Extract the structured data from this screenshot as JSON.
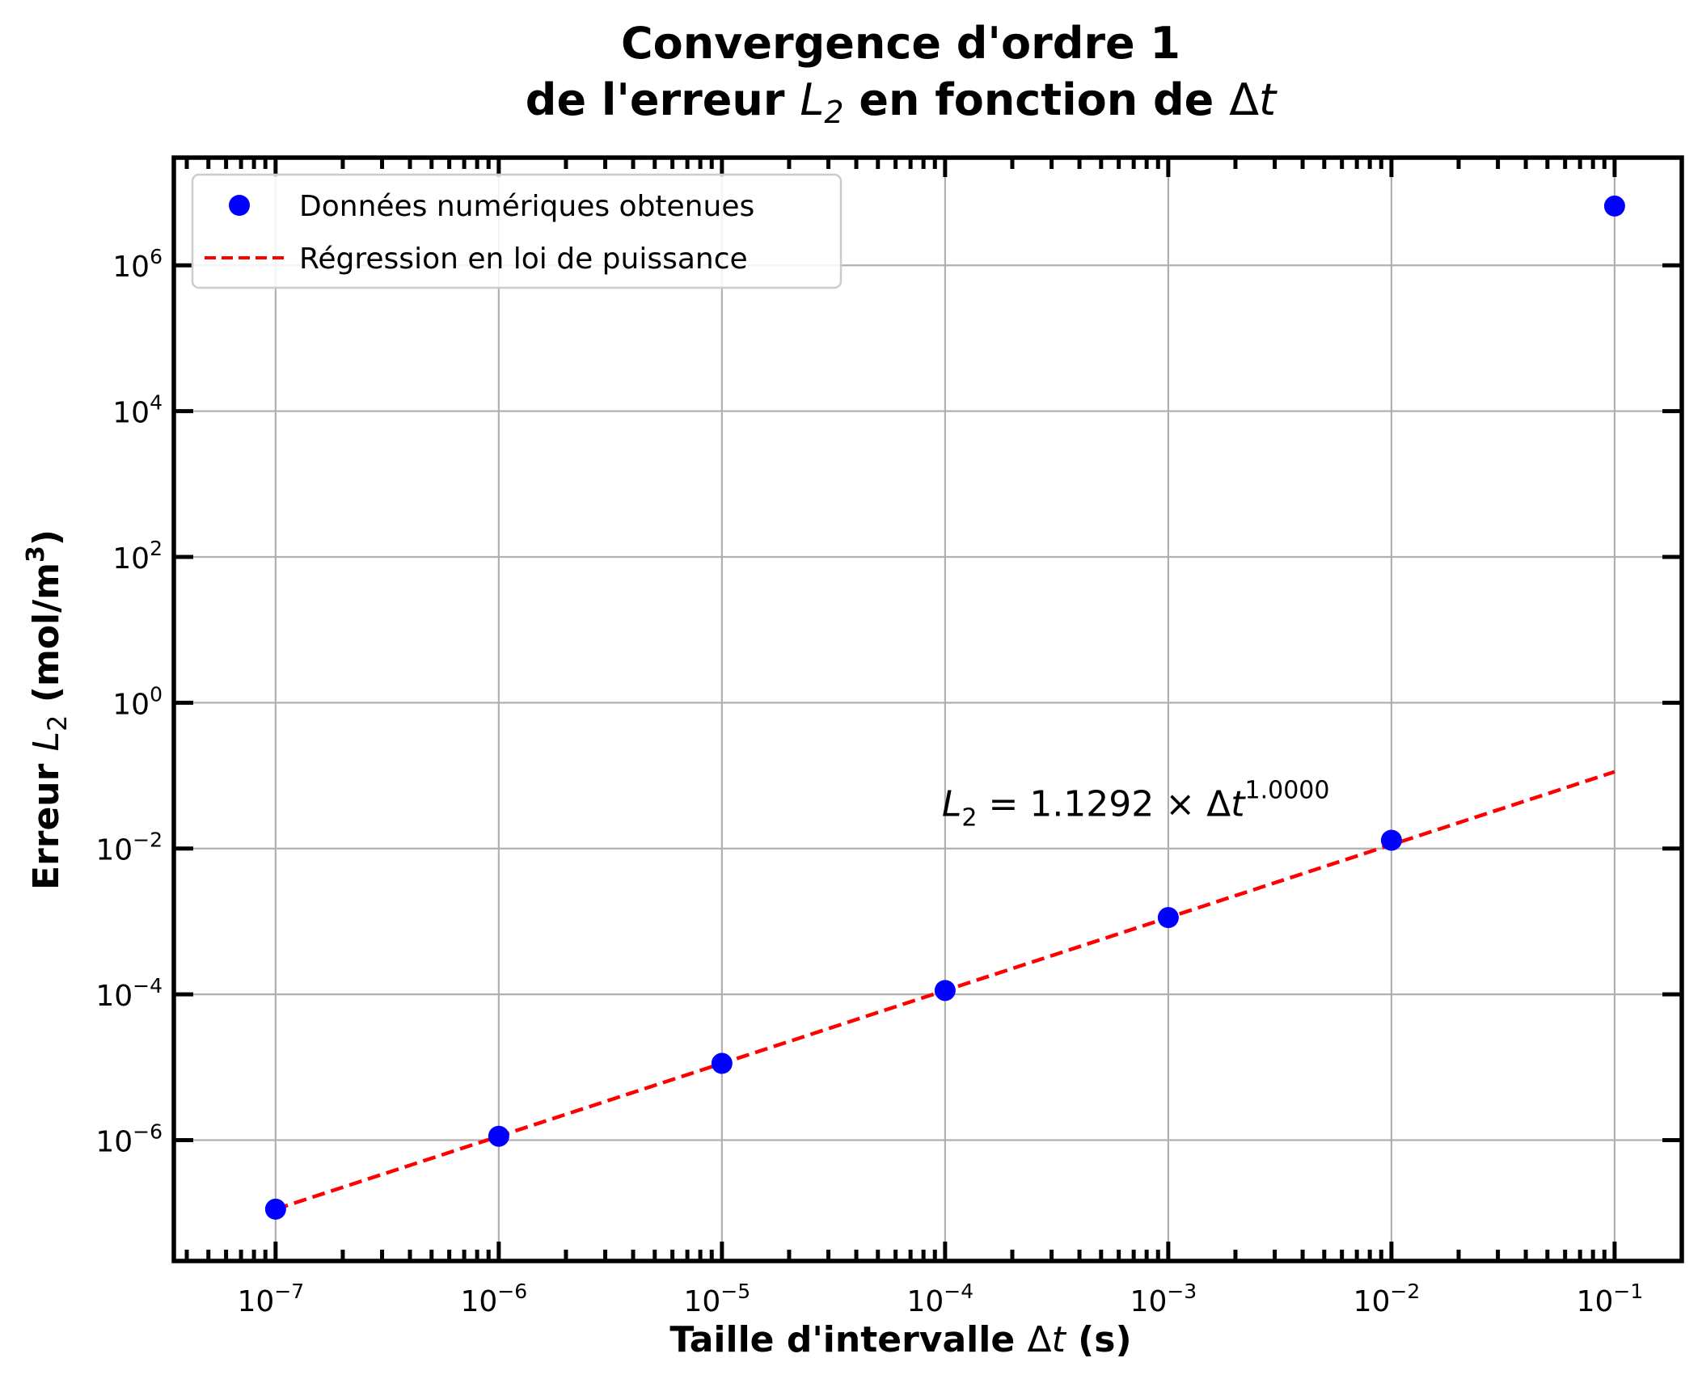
{
  "chart_data": {
    "type": "scatter",
    "title": {
      "line1": "Convergence d'ordre 1",
      "line2_prefix": "de l'erreur ",
      "line2_symbol": "L",
      "line2_sub": "2",
      "line2_middle": " en fonction de ",
      "line2_delta": "Δ",
      "line2_var": "t"
    },
    "xlabel": {
      "prefix": "Taille d'intervalle ",
      "delta": "Δ",
      "var": "t",
      "suffix": " (s)"
    },
    "ylabel": {
      "prefix": "Erreur ",
      "symbol": "L",
      "sub": "2",
      "unit_open": " (mol/m",
      "unit_exp": "3",
      "unit_close": ")"
    },
    "xscale": "log",
    "yscale": "log",
    "xlim": [
      3.5e-08,
      0.2
    ],
    "ylim": [
      2.2e-08,
      30000000.0
    ],
    "xticks": [
      {
        "base": "10",
        "exp": "−7",
        "value": 1e-07
      },
      {
        "base": "10",
        "exp": "−6",
        "value": 1e-06
      },
      {
        "base": "10",
        "exp": "−5",
        "value": 1e-05
      },
      {
        "base": "10",
        "exp": "−4",
        "value": 0.0001
      },
      {
        "base": "10",
        "exp": "−3",
        "value": 0.001
      },
      {
        "base": "10",
        "exp": "−2",
        "value": 0.01
      },
      {
        "base": "10",
        "exp": "−1",
        "value": 0.1
      }
    ],
    "yticks": [
      {
        "base": "10",
        "exp": "−6",
        "value": 1e-06
      },
      {
        "base": "10",
        "exp": "−4",
        "value": 0.0001
      },
      {
        "base": "10",
        "exp": "−2",
        "value": 0.01
      },
      {
        "base": "10",
        "exp": "0",
        "value": 1
      },
      {
        "base": "10",
        "exp": "2",
        "value": 100
      },
      {
        "base": "10",
        "exp": "4",
        "value": 10000
      },
      {
        "base": "10",
        "exp": "6",
        "value": 1000000
      }
    ],
    "grid": true,
    "legend_position": "top-left",
    "series": [
      {
        "name": "Données numériques obtenues",
        "kind": "scatter",
        "color": "#0000ff",
        "points": [
          {
            "x": 1e-07,
            "y": 1.13e-07
          },
          {
            "x": 1e-06,
            "y": 1.13e-06
          },
          {
            "x": 1e-05,
            "y": 1.13e-05
          },
          {
            "x": 0.0001,
            "y": 0.000113
          },
          {
            "x": 0.001,
            "y": 0.00113
          },
          {
            "x": 0.01,
            "y": 0.013
          },
          {
            "x": 0.1,
            "y": 6500000.0
          }
        ]
      },
      {
        "name": "Régression en loi de puissance",
        "kind": "line",
        "style": "dashed",
        "color": "#ff0000",
        "coefficient": 1.1292,
        "exponent": 1.0,
        "x": [
          1e-07,
          0.1
        ]
      }
    ],
    "annotation": {
      "symbol": "L",
      "sub": "2",
      "text": " = 1.1292 × Δ",
      "var": "t",
      "exp": "1.0000",
      "x": 0.0001,
      "y": 0.028
    }
  }
}
